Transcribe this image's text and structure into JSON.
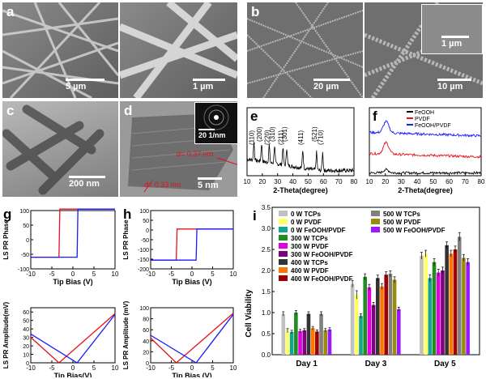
{
  "panels": {
    "a": {
      "label": "a",
      "scales": [
        "5 µm",
        "1 µm"
      ]
    },
    "b": {
      "label": "b",
      "scales": [
        "20 µm",
        "10 µm",
        "1 µm"
      ]
    },
    "c": {
      "label": "c",
      "scale": "200 nm"
    },
    "d": {
      "label": "d",
      "scale": "5 nm",
      "inset_scale": "20 1/nm",
      "d_spacings": [
        "d= 0.37 nm",
        "d= 0.33 nm"
      ]
    },
    "e": {
      "label": "e"
    },
    "f": {
      "label": "f"
    },
    "g": {
      "label": "g"
    },
    "h": {
      "label": "h"
    },
    "i": {
      "label": "i"
    }
  },
  "chart_data": [
    {
      "panel": "e",
      "type": "line",
      "xlabel": "2-Theta(degree)",
      "ylabel": "",
      "xlim": [
        10,
        80
      ],
      "xticks": [
        10,
        20,
        30,
        40,
        50,
        60,
        70,
        80
      ],
      "color": "#000000",
      "peaks": [
        {
          "x": 14.5,
          "label": "(110)"
        },
        {
          "x": 19.5,
          "label": "(200)"
        },
        {
          "x": 24.5,
          "label": "(220)"
        },
        {
          "x": 28.0,
          "label": "(310)"
        },
        {
          "x": 33.5,
          "label": "(211)"
        },
        {
          "x": 36.0,
          "label": "(301)"
        },
        {
          "x": 46.5,
          "label": "(411)"
        },
        {
          "x": 55.5,
          "label": "(521)"
        },
        {
          "x": 59.5,
          "label": "(710)"
        }
      ]
    },
    {
      "panel": "f",
      "type": "line",
      "xlabel": "2-Theta(degree)",
      "ylabel": "",
      "xlim": [
        10,
        80
      ],
      "xticks": [
        10,
        20,
        30,
        40,
        50,
        60,
        70,
        80
      ],
      "legend_position": "top-left",
      "series": [
        {
          "name": "FeOOH",
          "color": "#000000"
        },
        {
          "name": "PVDF",
          "color": "#e8101a"
        },
        {
          "name": "FeOOH/PVDF",
          "color": "#1a1aff"
        }
      ]
    },
    {
      "panel": "g",
      "type": "line",
      "plots": [
        {
          "ylabel": "LS PR Phase",
          "xlabel": "Tip Bias (V)",
          "xlim": [
            -10,
            10
          ],
          "xticks": [
            -10,
            -5,
            0,
            5,
            10
          ],
          "ylim": [
            -100,
            100
          ],
          "yticks": [
            -100,
            -50,
            0,
            50,
            100
          ],
          "series": [
            {
              "color": "#e8101a",
              "x": [
                -10,
                -3.3,
                -3.1,
                10
              ],
              "y": [
                -60,
                -60,
                105,
                105
              ]
            },
            {
              "color": "#1a1aff",
              "x": [
                10,
                1.2,
                1.0,
                -10
              ],
              "y": [
                105,
                105,
                -60,
                -60
              ]
            }
          ]
        },
        {
          "ylabel": "LS PR Amplitude(mV)",
          "xlabel": "Tip Bias(V)",
          "xlim": [
            -10,
            10
          ],
          "xticks": [
            -10,
            -5,
            0,
            5,
            10
          ],
          "ylim": [
            0,
            65
          ],
          "yticks": [
            0,
            10,
            20,
            30,
            40,
            50,
            60
          ],
          "series": [
            {
              "color": "#e8101a",
              "x": [
                -10,
                -3.3,
                10
              ],
              "y": [
                30,
                0,
                58
              ]
            },
            {
              "color": "#1a1aff",
              "x": [
                -10,
                1,
                10
              ],
              "y": [
                34,
                0,
                57
              ]
            }
          ]
        }
      ]
    },
    {
      "panel": "h",
      "type": "line",
      "plots": [
        {
          "ylabel": "LS PR Phase",
          "xlabel": "Tip Bias (V)",
          "xlim": [
            -10,
            10
          ],
          "xticks": [
            -10,
            -5,
            0,
            5,
            10
          ],
          "ylim": [
            -200,
            100
          ],
          "yticks": [
            -200,
            -150,
            -100,
            -50,
            0,
            50,
            100
          ],
          "series": [
            {
              "color": "#e8101a",
              "x": [
                -10,
                -3.8,
                -3.6,
                10
              ],
              "y": [
                -155,
                -155,
                5,
                5
              ]
            },
            {
              "color": "#1a1aff",
              "x": [
                10,
                1.2,
                1.0,
                -10
              ],
              "y": [
                5,
                5,
                -155,
                -155
              ]
            }
          ]
        },
        {
          "ylabel": "LS PR Amplitude (mV)",
          "xlabel": "Tip Bias (V)",
          "xlim": [
            -10,
            10
          ],
          "xticks": [
            -10,
            -5,
            0,
            5,
            10
          ],
          "ylim": [
            0,
            100
          ],
          "yticks": [
            0,
            20,
            40,
            60,
            80,
            100
          ],
          "series": [
            {
              "color": "#e8101a",
              "x": [
                -10,
                -3.8,
                10
              ],
              "y": [
                45,
                0,
                90
              ]
            },
            {
              "color": "#1a1aff",
              "x": [
                -10,
                1,
                10
              ],
              "y": [
                50,
                0,
                88
              ]
            }
          ]
        }
      ]
    },
    {
      "panel": "i",
      "type": "bar",
      "ylabel": "Cell Viability",
      "ylim": [
        0,
        3.5
      ],
      "yticks": [
        0.0,
        0.5,
        1.0,
        1.5,
        2.0,
        2.5,
        3.0,
        3.5
      ],
      "categories": [
        "Day 1",
        "Day 3",
        "Day 5"
      ],
      "legend_position": "top",
      "series": [
        {
          "name": "0 W TCPs",
          "color": "#c0c0c0",
          "values": [
            0.97,
            1.68,
            2.35
          ],
          "errors": [
            0.05,
            0.08,
            0.08
          ]
        },
        {
          "name": "0 W PVDF",
          "color": "#ffff66",
          "values": [
            0.57,
            1.42,
            2.4
          ],
          "errors": [
            0.05,
            0.1,
            0.08
          ]
        },
        {
          "name": "0 W FeOOH/PVDF",
          "color": "#15a58d",
          "values": [
            0.54,
            0.92,
            1.82
          ],
          "errors": [
            0.04,
            0.05,
            0.08
          ]
        },
        {
          "name": "300 W TCPs",
          "color": "#228b22",
          "values": [
            1.0,
            1.85,
            2.2
          ],
          "errors": [
            0.05,
            0.07,
            0.08
          ]
        },
        {
          "name": "300 W PVDF",
          "color": "#e000e0",
          "values": [
            0.56,
            1.6,
            1.95
          ],
          "errors": [
            0.04,
            0.07,
            0.08
          ]
        },
        {
          "name": "300 W FeOOH/PVDF",
          "color": "#800080",
          "values": [
            0.58,
            1.18,
            2.0
          ],
          "errors": [
            0.04,
            0.06,
            0.08
          ]
        },
        {
          "name": "400 W TCPs",
          "color": "#333333",
          "values": [
            0.97,
            1.82,
            2.6
          ],
          "errors": [
            0.05,
            0.07,
            0.08
          ]
        },
        {
          "name": "400 W PVDF",
          "color": "#ff7700",
          "values": [
            0.63,
            1.62,
            2.4
          ],
          "errors": [
            0.04,
            0.07,
            0.08
          ]
        },
        {
          "name": "400 W FeOOH/PVDF",
          "color": "#a00000",
          "values": [
            0.55,
            1.9,
            2.5
          ],
          "errors": [
            0.04,
            0.07,
            0.08
          ]
        },
        {
          "name": "500 W TCPs",
          "color": "#808080",
          "values": [
            0.97,
            1.92,
            2.8
          ],
          "errors": [
            0.05,
            0.07,
            0.1
          ]
        },
        {
          "name": "500 W PVDF",
          "color": "#9a8a10",
          "values": [
            0.58,
            1.78,
            2.3
          ],
          "errors": [
            0.04,
            0.07,
            0.08
          ]
        },
        {
          "name": "500 W FeOOH/PVDF",
          "color": "#9a1aff",
          "values": [
            0.6,
            1.08,
            2.2
          ],
          "errors": [
            0.04,
            0.05,
            0.08
          ]
        }
      ]
    }
  ]
}
